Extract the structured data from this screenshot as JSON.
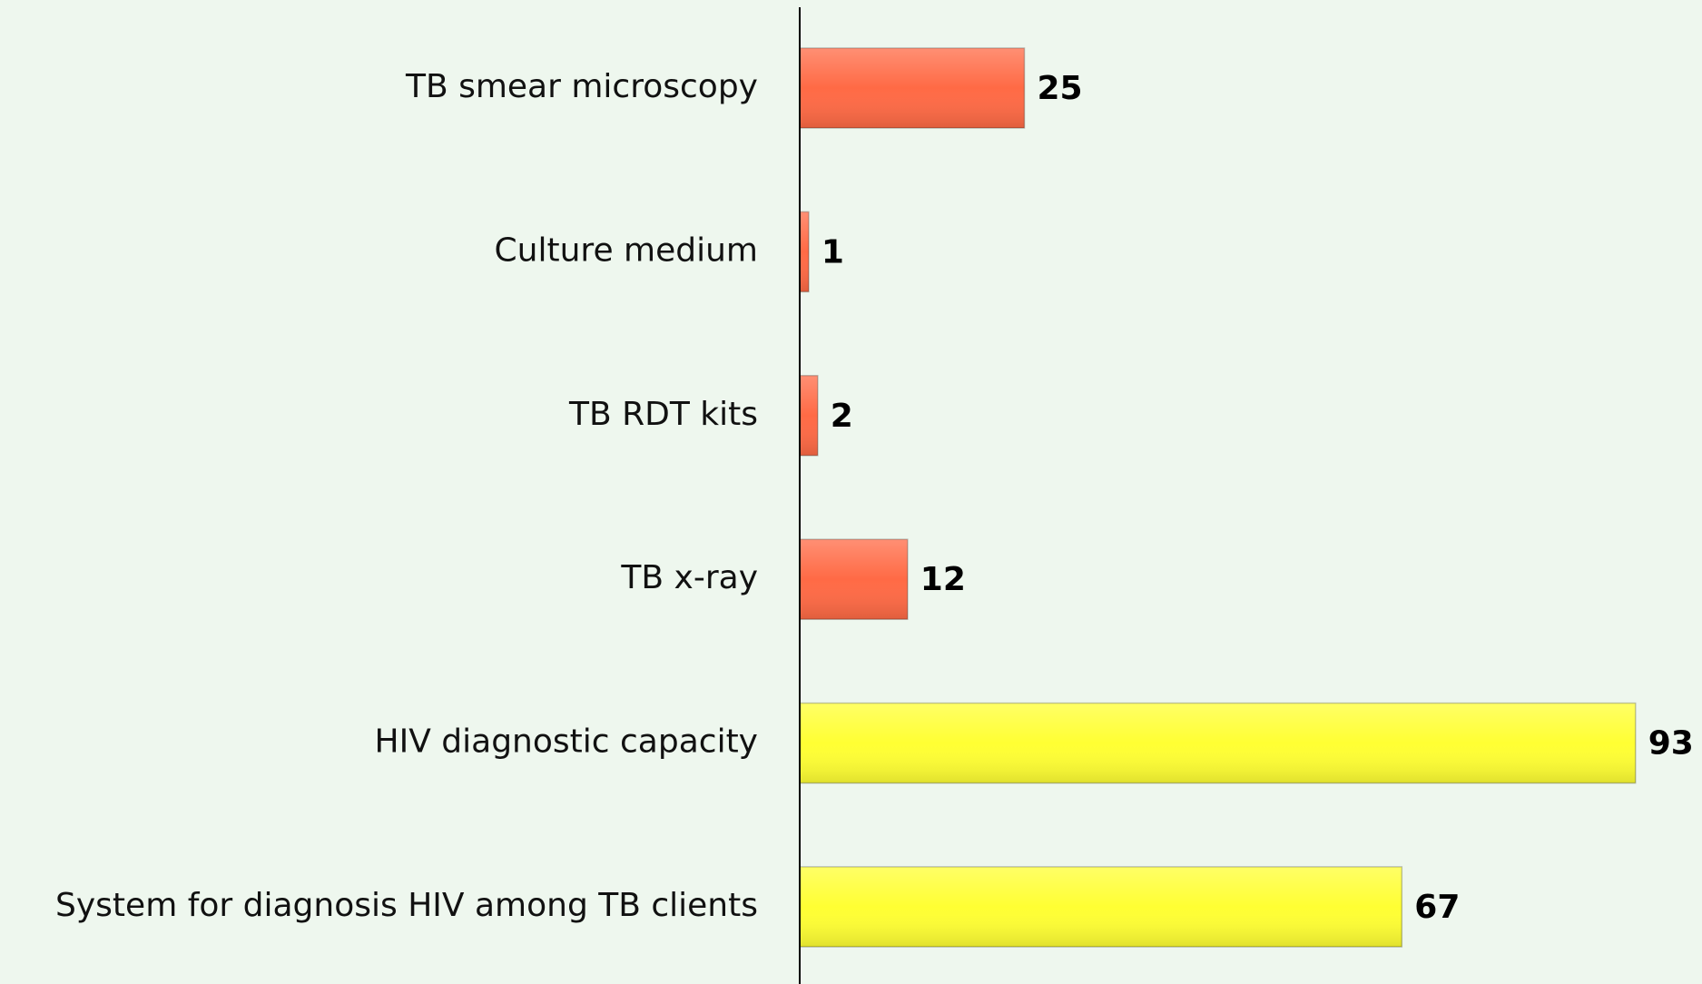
{
  "chart_data": {
    "type": "bar",
    "orientation": "horizontal",
    "categories": [
      "TB smear microscopy",
      "Culture medium",
      "TB RDT kits",
      "TB x-ray",
      "HIV diagnostic capacity",
      "System for diagnosis HIV among TB clients"
    ],
    "values": [
      25,
      1,
      2,
      12,
      93,
      67
    ],
    "colors": [
      "#ff6a45",
      "#ff6a45",
      "#ff6a45",
      "#ff6a45",
      "#ffff33",
      "#ffff33"
    ],
    "xlim": [
      0,
      100
    ]
  }
}
